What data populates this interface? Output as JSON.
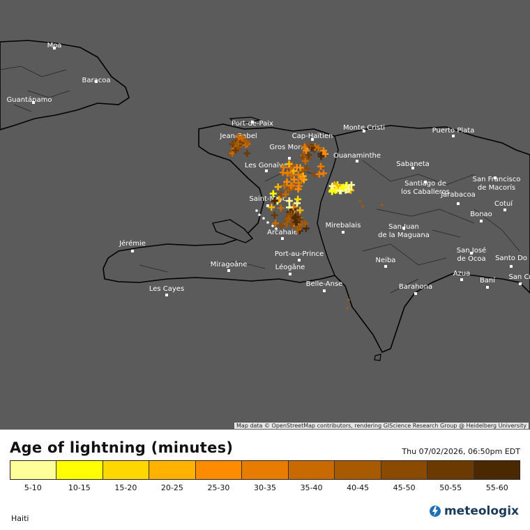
{
  "map": {
    "attribution": "Map data © OpenStreetMap contributors, rendering GIScience Research Group @ Heidelberg University",
    "cities": [
      {
        "name": "Moa"
      },
      {
        "name": "Baracoa"
      },
      {
        "name": "Guantánamo"
      },
      {
        "name": "Port-de-Paix"
      },
      {
        "name": "Jean-Rabel"
      },
      {
        "name": "Cap-Haïtien"
      },
      {
        "name": "Gros Morne"
      },
      {
        "name": "Monte Cristi"
      },
      {
        "name": "Ouanaminthe"
      },
      {
        "name": "Puerto Plata"
      },
      {
        "name": "Les Gonaïves"
      },
      {
        "name": "Sabaneta"
      },
      {
        "name": "Santiago de los Caballeros"
      },
      {
        "name": "San Francisco de Macorís"
      },
      {
        "name": "Saint-Marc"
      },
      {
        "name": "Jarabacoa"
      },
      {
        "name": "Cotuí"
      },
      {
        "name": "Bonao"
      },
      {
        "name": "San Juan de la Maguana"
      },
      {
        "name": "Mirebalais"
      },
      {
        "name": "Arcahaie"
      },
      {
        "name": "Jérémie"
      },
      {
        "name": "Port-au-Prince"
      },
      {
        "name": "San José de Ocoa"
      },
      {
        "name": "Miragoâne"
      },
      {
        "name": "Léogâne"
      },
      {
        "name": "Neiba"
      },
      {
        "name": "Azua"
      },
      {
        "name": "Santo Do"
      },
      {
        "name": "Baní"
      },
      {
        "name": "San Cr"
      },
      {
        "name": "Les Cayes"
      },
      {
        "name": "Belle-Anse"
      },
      {
        "name": "Barahona"
      }
    ]
  },
  "legend": {
    "title": "Age of lightning (minutes)",
    "timestamp": "Thu 07/02/2026, 06:50pm EDT",
    "bins": [
      {
        "label": "5-10",
        "color": "#ffff99"
      },
      {
        "label": "10-15",
        "color": "#ffff00"
      },
      {
        "label": "15-20",
        "color": "#ffd700"
      },
      {
        "label": "20-25",
        "color": "#ffb300"
      },
      {
        "label": "25-30",
        "color": "#ff8c00"
      },
      {
        "label": "30-35",
        "color": "#e87c00"
      },
      {
        "label": "35-40",
        "color": "#c86a00"
      },
      {
        "label": "40-45",
        "color": "#a85a00"
      },
      {
        "label": "45-50",
        "color": "#8a4a00"
      },
      {
        "label": "50-55",
        "color": "#6b3a00"
      },
      {
        "label": "55-60",
        "color": "#4a2800"
      }
    ]
  },
  "footer": {
    "region": "Haiti",
    "brand": "meteologix",
    "brand_icon": "meteologix-logo-icon"
  }
}
